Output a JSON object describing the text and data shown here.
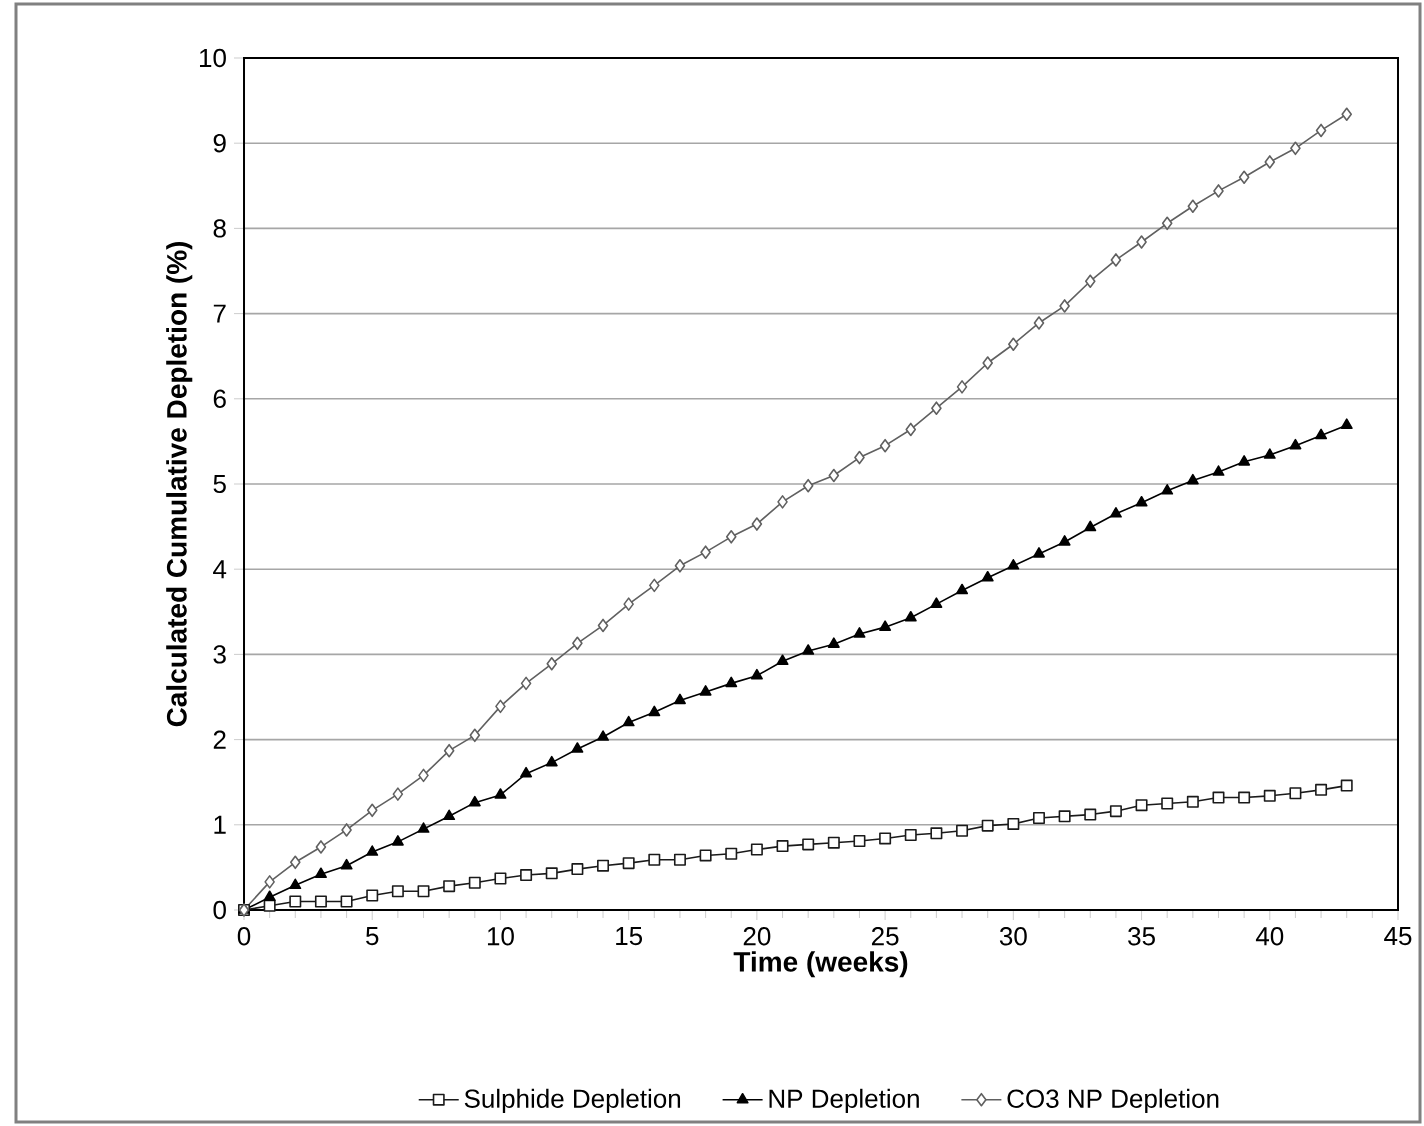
{
  "chart_data": {
    "type": "line",
    "xlabel": "Time (weeks)",
    "ylabel": "Calculated Cumulative Depletion (%)",
    "x": [
      0,
      1,
      2,
      3,
      4,
      5,
      6,
      7,
      8,
      9,
      10,
      11,
      12,
      13,
      14,
      15,
      16,
      17,
      18,
      19,
      20,
      21,
      22,
      23,
      24,
      25,
      26,
      27,
      28,
      29,
      30,
      31,
      32,
      33,
      34,
      35,
      36,
      37,
      38,
      39,
      40,
      41,
      42,
      43
    ],
    "series": [
      {
        "name": "Sulphide Depletion",
        "color": "#1a1a1a",
        "marker": "square",
        "values": [
          0,
          0.05,
          0.1,
          0.1,
          0.1,
          0.17,
          0.22,
          0.22,
          0.28,
          0.32,
          0.37,
          0.41,
          0.43,
          0.48,
          0.52,
          0.55,
          0.59,
          0.59,
          0.64,
          0.66,
          0.71,
          0.75,
          0.77,
          0.79,
          0.81,
          0.84,
          0.88,
          0.9,
          0.93,
          0.99,
          1.01,
          1.08,
          1.1,
          1.12,
          1.16,
          1.23,
          1.25,
          1.27,
          1.32,
          1.32,
          1.34,
          1.37,
          1.41,
          1.46
        ]
      },
      {
        "name": "NP Depletion",
        "color": "#000000",
        "marker": "triangle",
        "values": [
          0,
          0.15,
          0.29,
          0.42,
          0.52,
          0.68,
          0.8,
          0.95,
          1.1,
          1.26,
          1.35,
          1.6,
          1.73,
          1.89,
          2.03,
          2.2,
          2.32,
          2.46,
          2.56,
          2.66,
          2.75,
          2.92,
          3.04,
          3.12,
          3.24,
          3.32,
          3.43,
          3.59,
          3.75,
          3.9,
          4.04,
          4.18,
          4.32,
          4.49,
          4.65,
          4.78,
          4.92,
          5.04,
          5.14,
          5.26,
          5.34,
          5.45,
          5.57,
          5.69
        ]
      },
      {
        "name": "CO3 NP Depletion",
        "color": "#606060",
        "marker": "diamond",
        "values": [
          0,
          0.33,
          0.56,
          0.74,
          0.94,
          1.17,
          1.36,
          1.58,
          1.87,
          2.05,
          2.39,
          2.66,
          2.89,
          3.13,
          3.34,
          3.59,
          3.81,
          4.04,
          4.2,
          4.38,
          4.53,
          4.79,
          4.98,
          5.1,
          5.31,
          5.45,
          5.64,
          5.89,
          6.14,
          6.42,
          6.64,
          6.89,
          7.09,
          7.38,
          7.63,
          7.84,
          8.06,
          8.26,
          8.44,
          8.6,
          8.78,
          8.94,
          9.15,
          9.34
        ]
      }
    ],
    "xlim": [
      0,
      45
    ],
    "xticks": [
      0,
      5,
      10,
      15,
      20,
      25,
      30,
      35,
      40,
      45
    ],
    "ylim": [
      0,
      10
    ],
    "yticks": [
      0,
      1,
      2,
      3,
      4,
      5,
      6,
      7,
      8,
      9,
      10
    ],
    "grid": "y",
    "legend": "bottom",
    "line_style": "solid"
  }
}
